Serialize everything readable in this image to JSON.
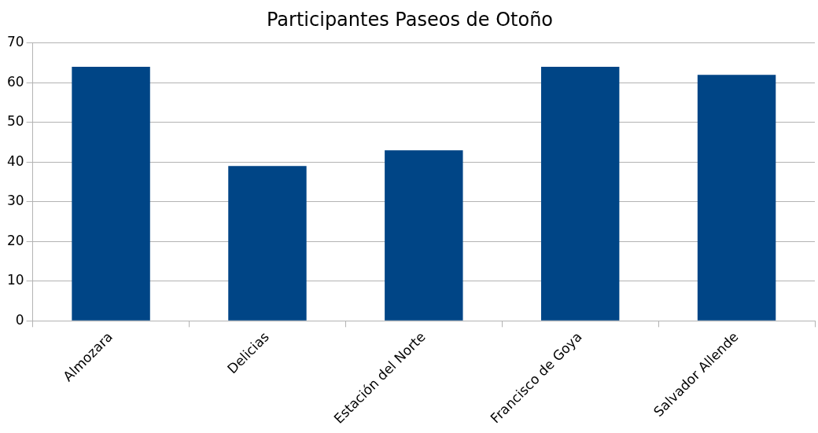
{
  "chart_data": {
    "type": "bar",
    "title": "Participantes Paseos de Otoño",
    "categories": [
      "Almozara",
      "Delicias",
      "Estación del Norte",
      "Francisco de Goya",
      "Salvador Allende"
    ],
    "values": [
      64,
      39,
      43,
      64,
      62
    ],
    "color": "#004586",
    "ylim": [
      0,
      70
    ],
    "yticks": [
      0,
      10,
      20,
      30,
      40,
      50,
      60,
      70
    ],
    "grid": "y",
    "legend": false
  }
}
